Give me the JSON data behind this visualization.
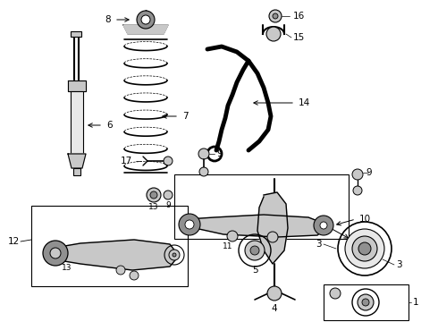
{
  "bg_color": "#ffffff",
  "fig_width": 4.9,
  "fig_height": 3.6,
  "dpi": 100,
  "line_color": "#000000",
  "gray1": "#c8c8c8",
  "gray2": "#909090",
  "gray3": "#e8e8e8",
  "label_fontsize": 7.5
}
